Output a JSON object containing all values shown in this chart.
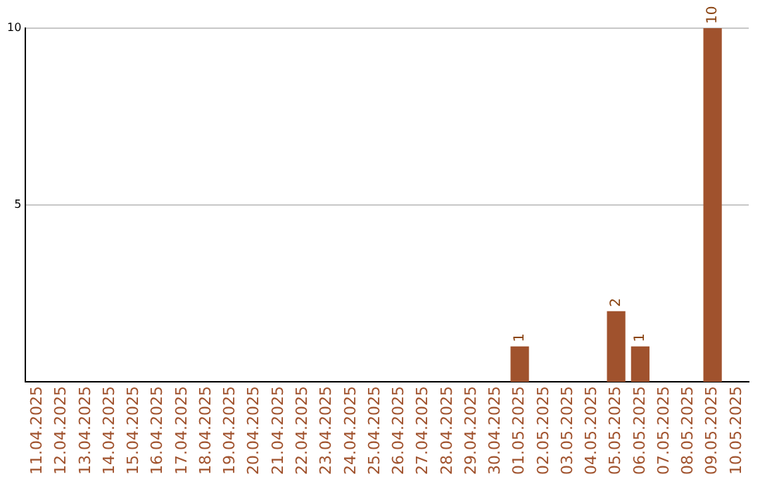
{
  "chart_data": {
    "type": "bar",
    "categories": [
      "11.04.2025",
      "12.04.2025",
      "13.04.2025",
      "14.04.2025",
      "15.04.2025",
      "16.04.2025",
      "17.04.2025",
      "18.04.2025",
      "19.04.2025",
      "20.04.2025",
      "21.04.2025",
      "22.04.2025",
      "23.04.2025",
      "24.04.2025",
      "25.04.2025",
      "26.04.2025",
      "27.04.2025",
      "28.04.2025",
      "29.04.2025",
      "30.04.2025",
      "01.05.2025",
      "02.05.2025",
      "03.05.2025",
      "04.05.2025",
      "05.05.2025",
      "06.05.2025",
      "07.05.2025",
      "08.05.2025",
      "09.05.2025",
      "10.05.2025"
    ],
    "values": [
      0,
      0,
      0,
      0,
      0,
      0,
      0,
      0,
      0,
      0,
      0,
      0,
      0,
      0,
      0,
      0,
      0,
      0,
      0,
      0,
      1,
      0,
      0,
      0,
      2,
      1,
      0,
      0,
      10,
      0
    ],
    "value_labels": [
      null,
      null,
      null,
      null,
      null,
      null,
      null,
      null,
      null,
      null,
      null,
      null,
      null,
      null,
      null,
      null,
      null,
      null,
      null,
      null,
      "1",
      null,
      null,
      null,
      "2",
      "1",
      null,
      null,
      "10",
      null
    ],
    "color": "#a0522d",
    "ylim": [
      0,
      10
    ],
    "yticks": [
      5,
      10
    ],
    "grid": "y",
    "legend": false
  }
}
